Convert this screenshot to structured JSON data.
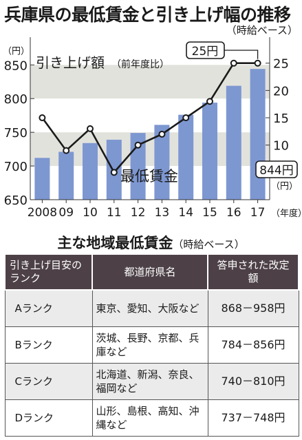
{
  "header": {
    "title": "兵庫県の最低賃金と引き上げ幅の推移",
    "subtitle": "（時給ベース）"
  },
  "chart_data": {
    "type": "bar",
    "categories": [
      "2008",
      "09",
      "10",
      "11",
      "12",
      "13",
      "14",
      "15",
      "16",
      "17"
    ],
    "x_suffix": "（年度）",
    "series": [
      {
        "name": "最低賃金",
        "type": "bar",
        "axis": "left",
        "color": "#7d97d1",
        "values": [
          712,
          721,
          734,
          739,
          749,
          761,
          776,
          794,
          819,
          844
        ]
      },
      {
        "name": "引き上げ額",
        "name_suffix": "（前年度比）",
        "type": "line",
        "axis": "right",
        "color": "#1a1a1a",
        "values": [
          15,
          9,
          13,
          5,
          10,
          12,
          15,
          18,
          25,
          25
        ]
      }
    ],
    "left_axis": {
      "unit": "（円）",
      "ticks": [
        650,
        700,
        750,
        800,
        850
      ],
      "ylim": [
        650,
        885
      ]
    },
    "right_axis": {
      "unit": "（円）",
      "ticks": [
        5,
        10,
        15,
        20,
        25
      ],
      "ylim": [
        0,
        29
      ]
    },
    "annotations": {
      "bar_last": "844円",
      "line_last": "25円"
    }
  },
  "table": {
    "title": "主な地域最低賃金",
    "title_note": "（時給ベース）",
    "headers": [
      "引き上げ目安のランク",
      "都道府県名",
      "答申された改定額"
    ],
    "rows": [
      {
        "rank": "Aランク",
        "prefectures": "東京、愛知、大阪など",
        "amount": "868－958円"
      },
      {
        "rank": "Bランク",
        "prefectures": "茨城、長野、京都、兵庫など",
        "amount": "784－856円"
      },
      {
        "rank": "Cランク",
        "prefectures": "北海道、新潟、奈良、福岡など",
        "amount": "740－810円"
      },
      {
        "rank": "Dランク",
        "prefectures": "山形、島根、高知、沖縄など",
        "amount": "737－748円"
      }
    ]
  },
  "colors": {
    "bar": "#7d97d1",
    "band": "#e2e2dd",
    "header_bg": "#4d4147",
    "row_shade": "#ebebeb"
  }
}
